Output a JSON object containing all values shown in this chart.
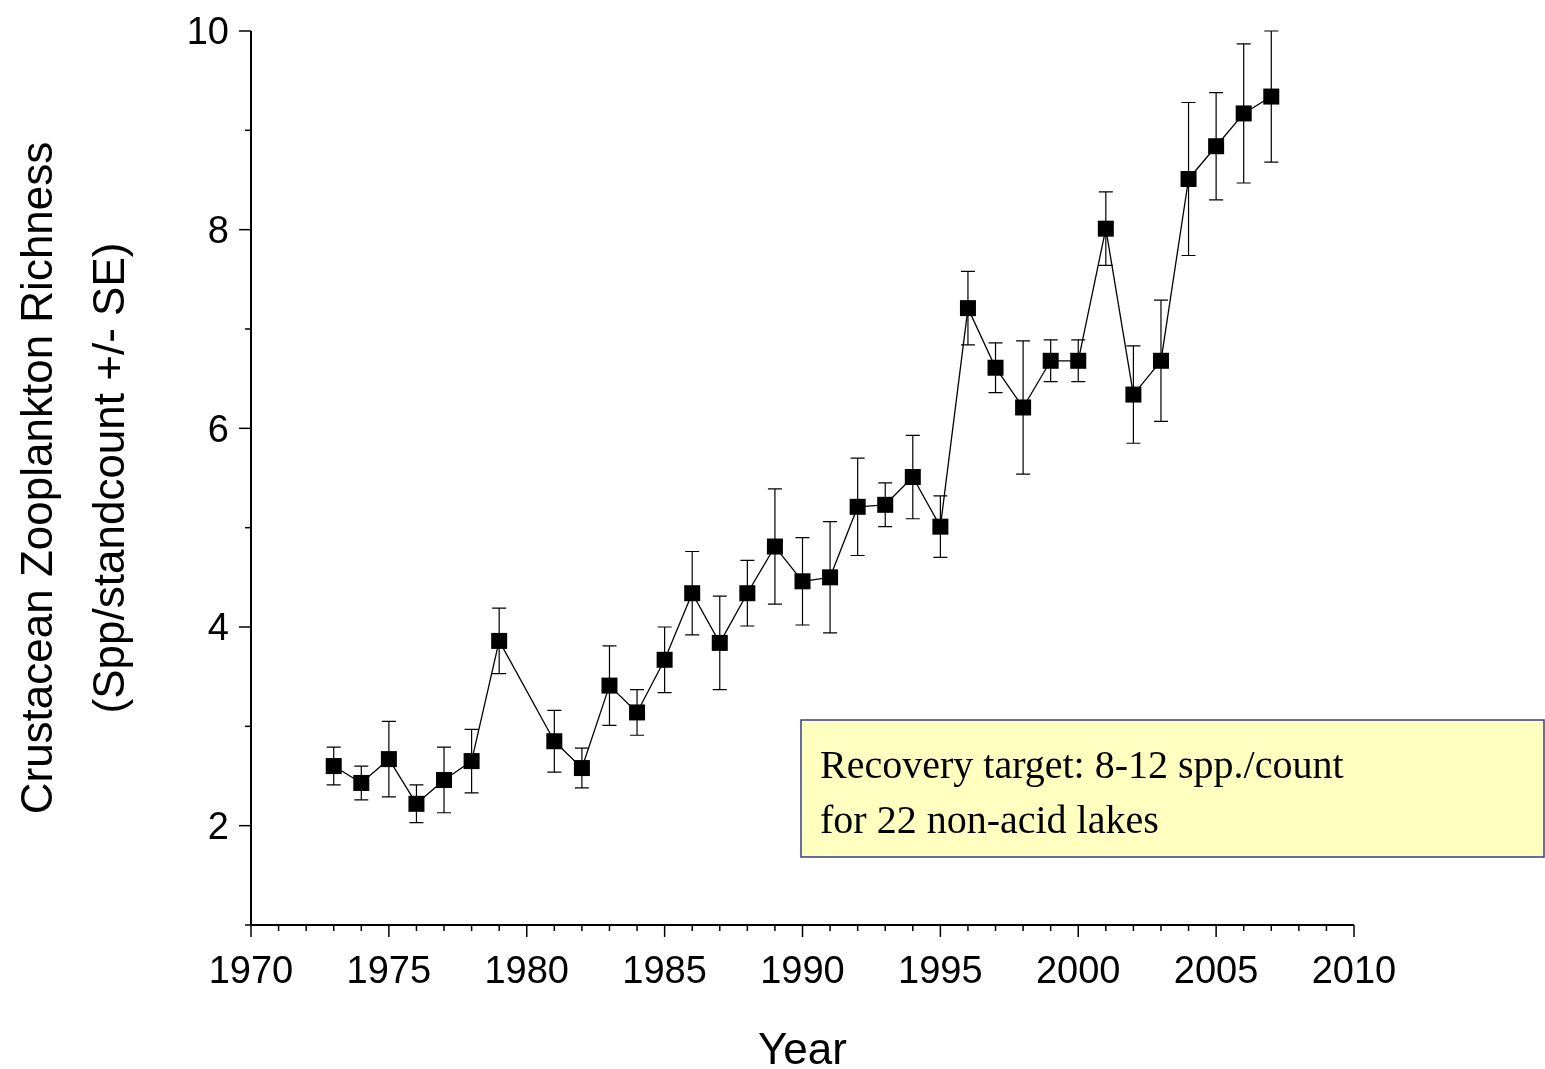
{
  "chart_data": {
    "type": "line",
    "xlabel": "Year",
    "ylabel": "Crustacean Zooplankton Richness\n(Spp/standcount +/-  SE)",
    "x": [
      1973,
      1974,
      1975,
      1976,
      1977,
      1978,
      1979,
      1981,
      1982,
      1983,
      1984,
      1985,
      1986,
      1987,
      1988,
      1989,
      1990,
      1991,
      1992,
      1993,
      1994,
      1995,
      1996,
      1997,
      1998,
      1999,
      2000,
      2001,
      2002,
      2003,
      2004,
      2005,
      2006,
      2007
    ],
    "series": [
      {
        "color": "#000000",
        "values": [
          2.6,
          2.43,
          2.67,
          2.22,
          2.46,
          2.65,
          3.86,
          2.85,
          2.58,
          3.41,
          3.14,
          3.67,
          4.34,
          3.84,
          4.34,
          4.81,
          4.46,
          4.5,
          5.21,
          5.23,
          5.51,
          5.01,
          7.21,
          6.61,
          6.21,
          6.68,
          6.68,
          8.01,
          6.34,
          6.68,
          8.51,
          8.84,
          9.17,
          9.34
        ],
        "errors": [
          0.19,
          0.17,
          0.38,
          0.19,
          0.33,
          0.32,
          0.33,
          0.31,
          0.2,
          0.4,
          0.23,
          0.33,
          0.42,
          0.47,
          0.33,
          0.58,
          0.44,
          0.56,
          0.49,
          0.22,
          0.42,
          0.31,
          0.37,
          0.25,
          0.67,
          0.21,
          0.21,
          0.37,
          0.49,
          0.61,
          0.77,
          0.54,
          0.7,
          0.66
        ]
      }
    ],
    "marker": "square",
    "line_style": "solid",
    "xlim": [
      1970,
      2010
    ],
    "xticks": [
      1970,
      {
        "value": 1971,
        "label": null
      },
      {
        "value": 1972,
        "label": null
      },
      {
        "value": 1973,
        "label": null
      },
      {
        "value": 1974,
        "label": null
      },
      1975,
      {
        "value": 1976,
        "label": null
      },
      {
        "value": 1977,
        "label": null
      },
      {
        "value": 1978,
        "label": null
      },
      {
        "value": 1979,
        "label": null
      },
      1980,
      {
        "value": 1981,
        "label": null
      },
      {
        "value": 1982,
        "label": null
      },
      {
        "value": 1983,
        "label": null
      },
      {
        "value": 1984,
        "label": null
      },
      1985,
      {
        "value": 1986,
        "label": null
      },
      {
        "value": 1987,
        "label": null
      },
      {
        "value": 1988,
        "label": null
      },
      {
        "value": 1989,
        "label": null
      },
      1990,
      {
        "value": 1991,
        "label": null
      },
      {
        "value": 1992,
        "label": null
      },
      {
        "value": 1993,
        "label": null
      },
      {
        "value": 1994,
        "label": null
      },
      1995,
      {
        "value": 1996,
        "label": null
      },
      {
        "value": 1997,
        "label": null
      },
      {
        "value": 1998,
        "label": null
      },
      {
        "value": 1999,
        "label": null
      },
      2000,
      {
        "value": 2001,
        "label": null
      },
      {
        "value": 2002,
        "label": null
      },
      {
        "value": 2003,
        "label": null
      },
      {
        "value": 2004,
        "label": null
      },
      2005,
      {
        "value": 2006,
        "label": null
      },
      {
        "value": 2007,
        "label": null
      },
      {
        "value": 2008,
        "label": null
      },
      {
        "value": 2009,
        "label": null
      },
      2010
    ],
    "ylim": [
      1,
      10
    ],
    "yticks": [
      {
        "value": 1,
        "label": null
      },
      2,
      {
        "value": 3,
        "label": null
      },
      4,
      {
        "value": 5,
        "label": null
      },
      6,
      {
        "value": 7,
        "label": null
      },
      8,
      {
        "value": 9,
        "label": null
      },
      10
    ],
    "annotations": [
      "Recovery target: 8-12 spp./count\nfor 22 non-acid lakes"
    ]
  }
}
